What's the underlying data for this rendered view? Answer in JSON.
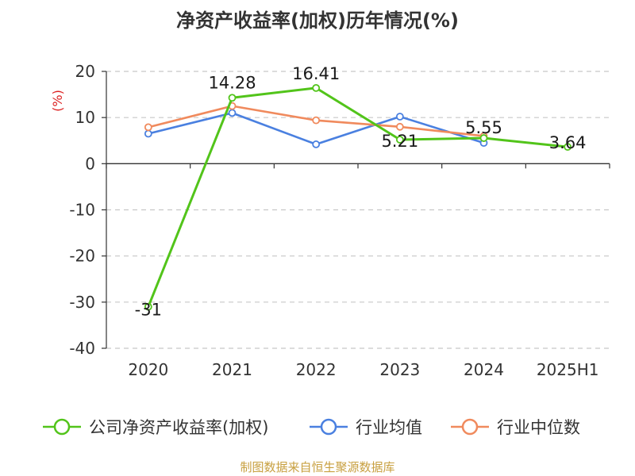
{
  "chart_data": {
    "type": "line",
    "title": "净资产收益率(加权)历年情况(%)",
    "ylabel": "(%)",
    "categories": [
      "2020",
      "2021",
      "2022",
      "2023",
      "2024",
      "2025H1"
    ],
    "ylim": [
      -40,
      20
    ],
    "yticks": [
      20,
      10,
      0,
      -10,
      -20,
      -30,
      -40
    ],
    "grid": true,
    "legend_position": "bottom",
    "series": [
      {
        "name": "公司净资产收益率(加权)",
        "color": "#52c41a",
        "values": [
          -31,
          14.28,
          16.41,
          5.21,
          5.55,
          3.64
        ],
        "labels": [
          "-31",
          "14.28",
          "16.41",
          "5.21",
          "5.55",
          "3.64"
        ]
      },
      {
        "name": "行业均值",
        "color": "#4a80e0",
        "values": [
          6.5,
          11.0,
          4.2,
          10.2,
          4.5,
          null
        ]
      },
      {
        "name": "行业中位数",
        "color": "#f08a5d",
        "values": [
          7.9,
          12.5,
          9.4,
          8.0,
          6.0,
          null
        ]
      }
    ]
  },
  "footer": {
    "source": "制图数据来自恒生聚源数据库"
  }
}
